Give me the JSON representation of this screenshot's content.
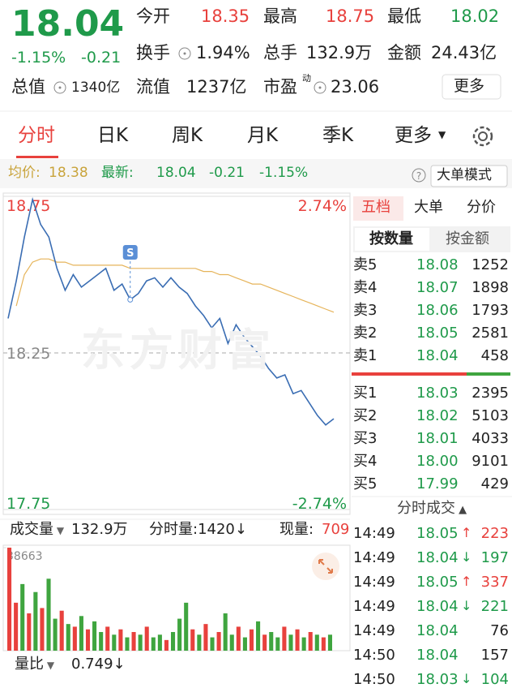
{
  "quote": {
    "price": "18.04",
    "change_pct": "-1.15%",
    "change": "-0.21",
    "stats": [
      {
        "label": "今开",
        "value": "18.35"
      },
      {
        "label": "最高",
        "value": "18.75"
      },
      {
        "label": "最低",
        "value": "18.02"
      },
      {
        "label": "换手",
        "value": "1.94%"
      },
      {
        "label": "总手",
        "value": "132.9万"
      },
      {
        "label": "金额",
        "value": "24.43亿"
      },
      {
        "label": "总值",
        "value": "1340亿"
      },
      {
        "label": "流值",
        "value": "1237亿"
      },
      {
        "label": "市盈",
        "sup": "动",
        "value": "23.06"
      }
    ],
    "more": "更多"
  },
  "tabs": [
    "分时",
    "日K",
    "周K",
    "月K",
    "季K",
    "更多"
  ],
  "info_bar": {
    "avg_label": "均价:",
    "avg": "18.38",
    "latest_label": "最新:",
    "latest": "18.04",
    "change": "-0.21",
    "change_pct": "-1.15%",
    "mode": "大单模式"
  },
  "watermark": "东方财富",
  "volume_bar": {
    "label": "成交量",
    "total": "132.9万",
    "minute": "分时量:1420↓",
    "current_label": "现量:",
    "current": "709"
  },
  "ratio": {
    "label": "量比",
    "value": "0.749↓"
  },
  "panel": {
    "tabs": [
      "五档",
      "大单",
      "分价"
    ],
    "subtabs": [
      "按数量",
      "按金额"
    ],
    "asks": [
      {
        "label": "卖5",
        "price": "18.08",
        "vol": "1252"
      },
      {
        "label": "卖4",
        "price": "18.07",
        "vol": "1898"
      },
      {
        "label": "卖3",
        "price": "18.06",
        "vol": "1793"
      },
      {
        "label": "卖2",
        "price": "18.05",
        "vol": "2581"
      },
      {
        "label": "卖1",
        "price": "18.04",
        "vol": "458"
      }
    ],
    "bids": [
      {
        "label": "买1",
        "price": "18.03",
        "vol": "2395"
      },
      {
        "label": "买2",
        "price": "18.02",
        "vol": "5103"
      },
      {
        "label": "买3",
        "price": "18.01",
        "vol": "4033"
      },
      {
        "label": "买4",
        "price": "18.00",
        "vol": "9101"
      },
      {
        "label": "买5",
        "price": "17.99",
        "vol": "429"
      }
    ],
    "trades_title": "分时成交",
    "trades": [
      {
        "time": "14:49",
        "price": "18.05",
        "dir": "↑",
        "vol": "223"
      },
      {
        "time": "14:49",
        "price": "18.04",
        "dir": "↓",
        "vol": "197"
      },
      {
        "time": "14:49",
        "price": "18.05",
        "dir": "↑",
        "vol": "337"
      },
      {
        "time": "14:49",
        "price": "18.04",
        "dir": "↓",
        "vol": "221"
      },
      {
        "time": "14:49",
        "price": "18.04",
        "vol": "76"
      },
      {
        "time": "14:50",
        "price": "18.04",
        "vol": "157"
      },
      {
        "time": "14:50",
        "price": "18.03",
        "dir": "↓",
        "vol": "104"
      }
    ]
  },
  "chart_data": [
    {
      "type": "line",
      "annotation": "S",
      "ylim": [
        17.75,
        18.75
      ],
      "yticks": [
        17.75,
        18.25,
        18.75
      ],
      "y2lim": [
        -2.74,
        2.74
      ],
      "y2ticks": [
        {
          "value": -2.74,
          "label": "-2.74%"
        },
        {
          "value": 2.74,
          "label": "2.74%"
        }
      ],
      "series": [
        {
          "color": "#3a6db3",
          "values": [
            18.36,
            18.48,
            18.62,
            18.74,
            18.66,
            18.62,
            18.52,
            18.45,
            18.5,
            18.46,
            18.48,
            18.5,
            18.52,
            18.45,
            18.47,
            18.42,
            18.44,
            18.48,
            18.49,
            18.46,
            18.49,
            18.46,
            18.44,
            18.4,
            18.37,
            18.33,
            18.36,
            18.28,
            18.34,
            18.3,
            18.27,
            18.24,
            18.2,
            18.17,
            18.18,
            18.12,
            18.13,
            18.09,
            18.05,
            18.02,
            18.04
          ]
        },
        {
          "color": "#e6b45a",
          "values": [
            null,
            18.4,
            18.5,
            18.54,
            18.55,
            18.55,
            18.54,
            18.54,
            18.53,
            18.53,
            18.53,
            18.53,
            18.53,
            18.53,
            18.53,
            18.52,
            18.52,
            18.52,
            18.52,
            18.52,
            18.52,
            18.52,
            18.52,
            18.52,
            18.51,
            18.51,
            18.5,
            18.5,
            18.49,
            18.48,
            18.47,
            18.47,
            18.46,
            18.45,
            18.44,
            18.43,
            18.42,
            18.41,
            18.4,
            18.39,
            18.38
          ]
        }
      ]
    },
    {
      "type": "bar",
      "ylim": [
        0,
        38663
      ],
      "yticks": [
        38663
      ],
      "values": [
        38663,
        18000,
        25000,
        14000,
        22000,
        16000,
        27000,
        12000,
        15000,
        10000,
        9000,
        13000,
        8000,
        11000,
        7000,
        9000,
        6000,
        8000,
        5000,
        7000,
        6000,
        9000,
        5000,
        6000,
        4000,
        7000,
        12000,
        18000,
        8000,
        6000,
        10000,
        5000,
        7000,
        14000,
        6000,
        9000,
        5000,
        8000,
        11000,
        6000,
        7000,
        5000,
        9000,
        6000,
        8000,
        5000,
        7000,
        6000,
        5000,
        6000
      ],
      "colors": [
        "#e8413d",
        "#e8413d",
        "#3fa53f",
        "#e8413d",
        "#3fa53f",
        "#e8413d",
        "#3fa53f",
        "#3fa53f",
        "#e8413d",
        "#3fa53f",
        "#e8413d",
        "#3fa53f",
        "#e8413d",
        "#3fa53f",
        "#3fa53f",
        "#e8413d",
        "#3fa53f",
        "#e8413d",
        "#3fa53f",
        "#e8413d",
        "#3fa53f",
        "#e8413d",
        "#3fa53f",
        "#3fa53f",
        "#e8413d",
        "#3fa53f",
        "#3fa53f",
        "#3fa53f",
        "#e8413d",
        "#3fa53f",
        "#e8413d",
        "#3fa53f",
        "#e8413d",
        "#3fa53f",
        "#3fa53f",
        "#e8413d",
        "#3fa53f",
        "#e8413d",
        "#3fa53f",
        "#e8413d",
        "#3fa53f",
        "#3fa53f",
        "#e8413d",
        "#3fa53f",
        "#e8413d",
        "#3fa53f",
        "#e8413d",
        "#3fa53f",
        "#e8413d",
        "#3fa53f"
      ]
    }
  ]
}
